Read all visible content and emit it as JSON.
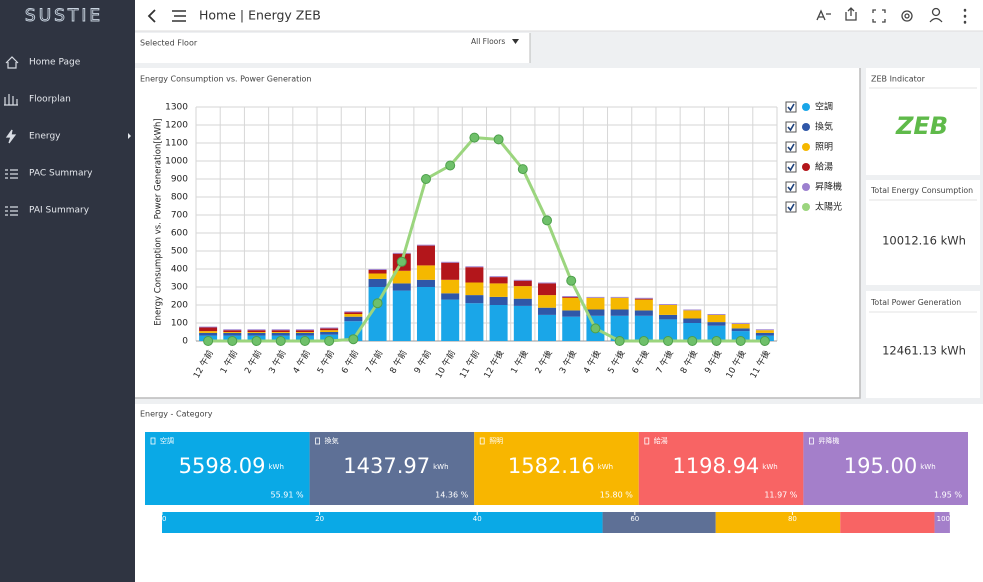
{
  "logo": "SUSTIE",
  "sidebar": {
    "items": [
      "Home Page",
      "Floorplan",
      "Energy",
      "PAC Summary",
      "PAI Summary"
    ]
  },
  "header": {
    "title": "Home | Energy ZEB"
  },
  "floor_selector": {
    "label": "Selected Floor",
    "value": "All Floors"
  },
  "zeb_panel": {
    "title": "ZEB Indicator",
    "badge": "ZEB",
    "total_consumption_title": "Total Energy Consumption",
    "total_consumption": "10012.16 kWh",
    "total_generation_title": "Total Power Generation",
    "total_generation": "12461.13 kWh"
  },
  "chart_data": [
    {
      "type": "bar",
      "stacked": true,
      "title": "Energy Consumption vs. Power Generation",
      "y_label": "Energy Consumption vs. Power Generation[kWh]",
      "categories": [
        "12 午前",
        "1 午前",
        "2 午前",
        "3 午前",
        "4 午前",
        "5 午前",
        "6 午前",
        "7 午前",
        "8 午前",
        "9 午前",
        "10 午前",
        "11 午前",
        "12 午後",
        "1 午後",
        "2 午後",
        "3 午後",
        "4 午後",
        "5 午後",
        "6 午後",
        "7 午後",
        "8 午後",
        "9 午後",
        "10 午後",
        "11 午後"
      ],
      "series": [
        {
          "name": "空調",
          "color": "#1aa6e8",
          "type": "bar",
          "values": [
            30,
            30,
            30,
            30,
            30,
            35,
            110,
            300,
            280,
            300,
            230,
            210,
            200,
            195,
            145,
            135,
            140,
            140,
            140,
            120,
            100,
            85,
            55,
            30
          ]
        },
        {
          "name": "換気",
          "color": "#2f57a8",
          "type": "bar",
          "values": [
            15,
            15,
            15,
            15,
            15,
            15,
            25,
            45,
            40,
            40,
            35,
            45,
            45,
            40,
            40,
            35,
            35,
            35,
            30,
            25,
            25,
            20,
            15,
            15
          ]
        },
        {
          "name": "照明",
          "color": "#f5b800",
          "type": "bar",
          "values": [
            10,
            5,
            5,
            5,
            5,
            10,
            15,
            30,
            70,
            80,
            75,
            70,
            75,
            70,
            70,
            70,
            65,
            65,
            60,
            55,
            45,
            40,
            25,
            15
          ]
        },
        {
          "name": "給湯",
          "color": "#b3161b",
          "type": "bar",
          "values": [
            20,
            10,
            10,
            10,
            10,
            10,
            10,
            20,
            95,
            110,
            95,
            85,
            35,
            30,
            65,
            5,
            0,
            0,
            5,
            0,
            0,
            0,
            0,
            0
          ]
        },
        {
          "name": "昇降機",
          "color": "#9c80cf",
          "type": "bar",
          "values": [
            5,
            5,
            5,
            5,
            5,
            5,
            5,
            5,
            5,
            5,
            5,
            5,
            5,
            5,
            5,
            5,
            5,
            5,
            5,
            5,
            5,
            5,
            5,
            5
          ]
        },
        {
          "name": "太陽光",
          "color": "#9bd57e",
          "type": "line",
          "values": [
            0,
            0,
            0,
            0,
            0,
            0,
            10,
            210,
            440,
            900,
            975,
            1130,
            1120,
            955,
            670,
            335,
            70,
            0,
            0,
            0,
            0,
            0,
            0,
            0
          ]
        }
      ],
      "ylim": [
        0,
        1300
      ],
      "yticks": [
        0,
        100,
        200,
        300,
        400,
        500,
        600,
        700,
        800,
        900,
        1000,
        1100,
        1200,
        1300
      ],
      "grid": true
    },
    {
      "type": "bar",
      "orientation": "horizontal",
      "stacked": true,
      "title": "Energy - Category",
      "categories": [
        "空調",
        "換気",
        "照明",
        "給湯",
        "昇降機"
      ],
      "colors": [
        "#0aa9e6",
        "#5e7096",
        "#f8b600",
        "#f86464",
        "#a47fca"
      ],
      "unit": "kWh",
      "energy": [
        5598.09,
        1437.97,
        1582.16,
        1198.94,
        195.0
      ],
      "energy_labels": [
        "5598.09",
        "1437.97",
        "1582.16",
        "1198.94",
        "195.00"
      ],
      "values": [
        55.91,
        14.36,
        15.8,
        11.97,
        1.95
      ],
      "value_labels": [
        "55.91 %",
        "14.36 %",
        "15.80 %",
        "11.97 %",
        "1.95 %"
      ],
      "xlim": [
        0,
        100
      ],
      "xticks": [
        0,
        20,
        40,
        60,
        80,
        100
      ]
    }
  ]
}
